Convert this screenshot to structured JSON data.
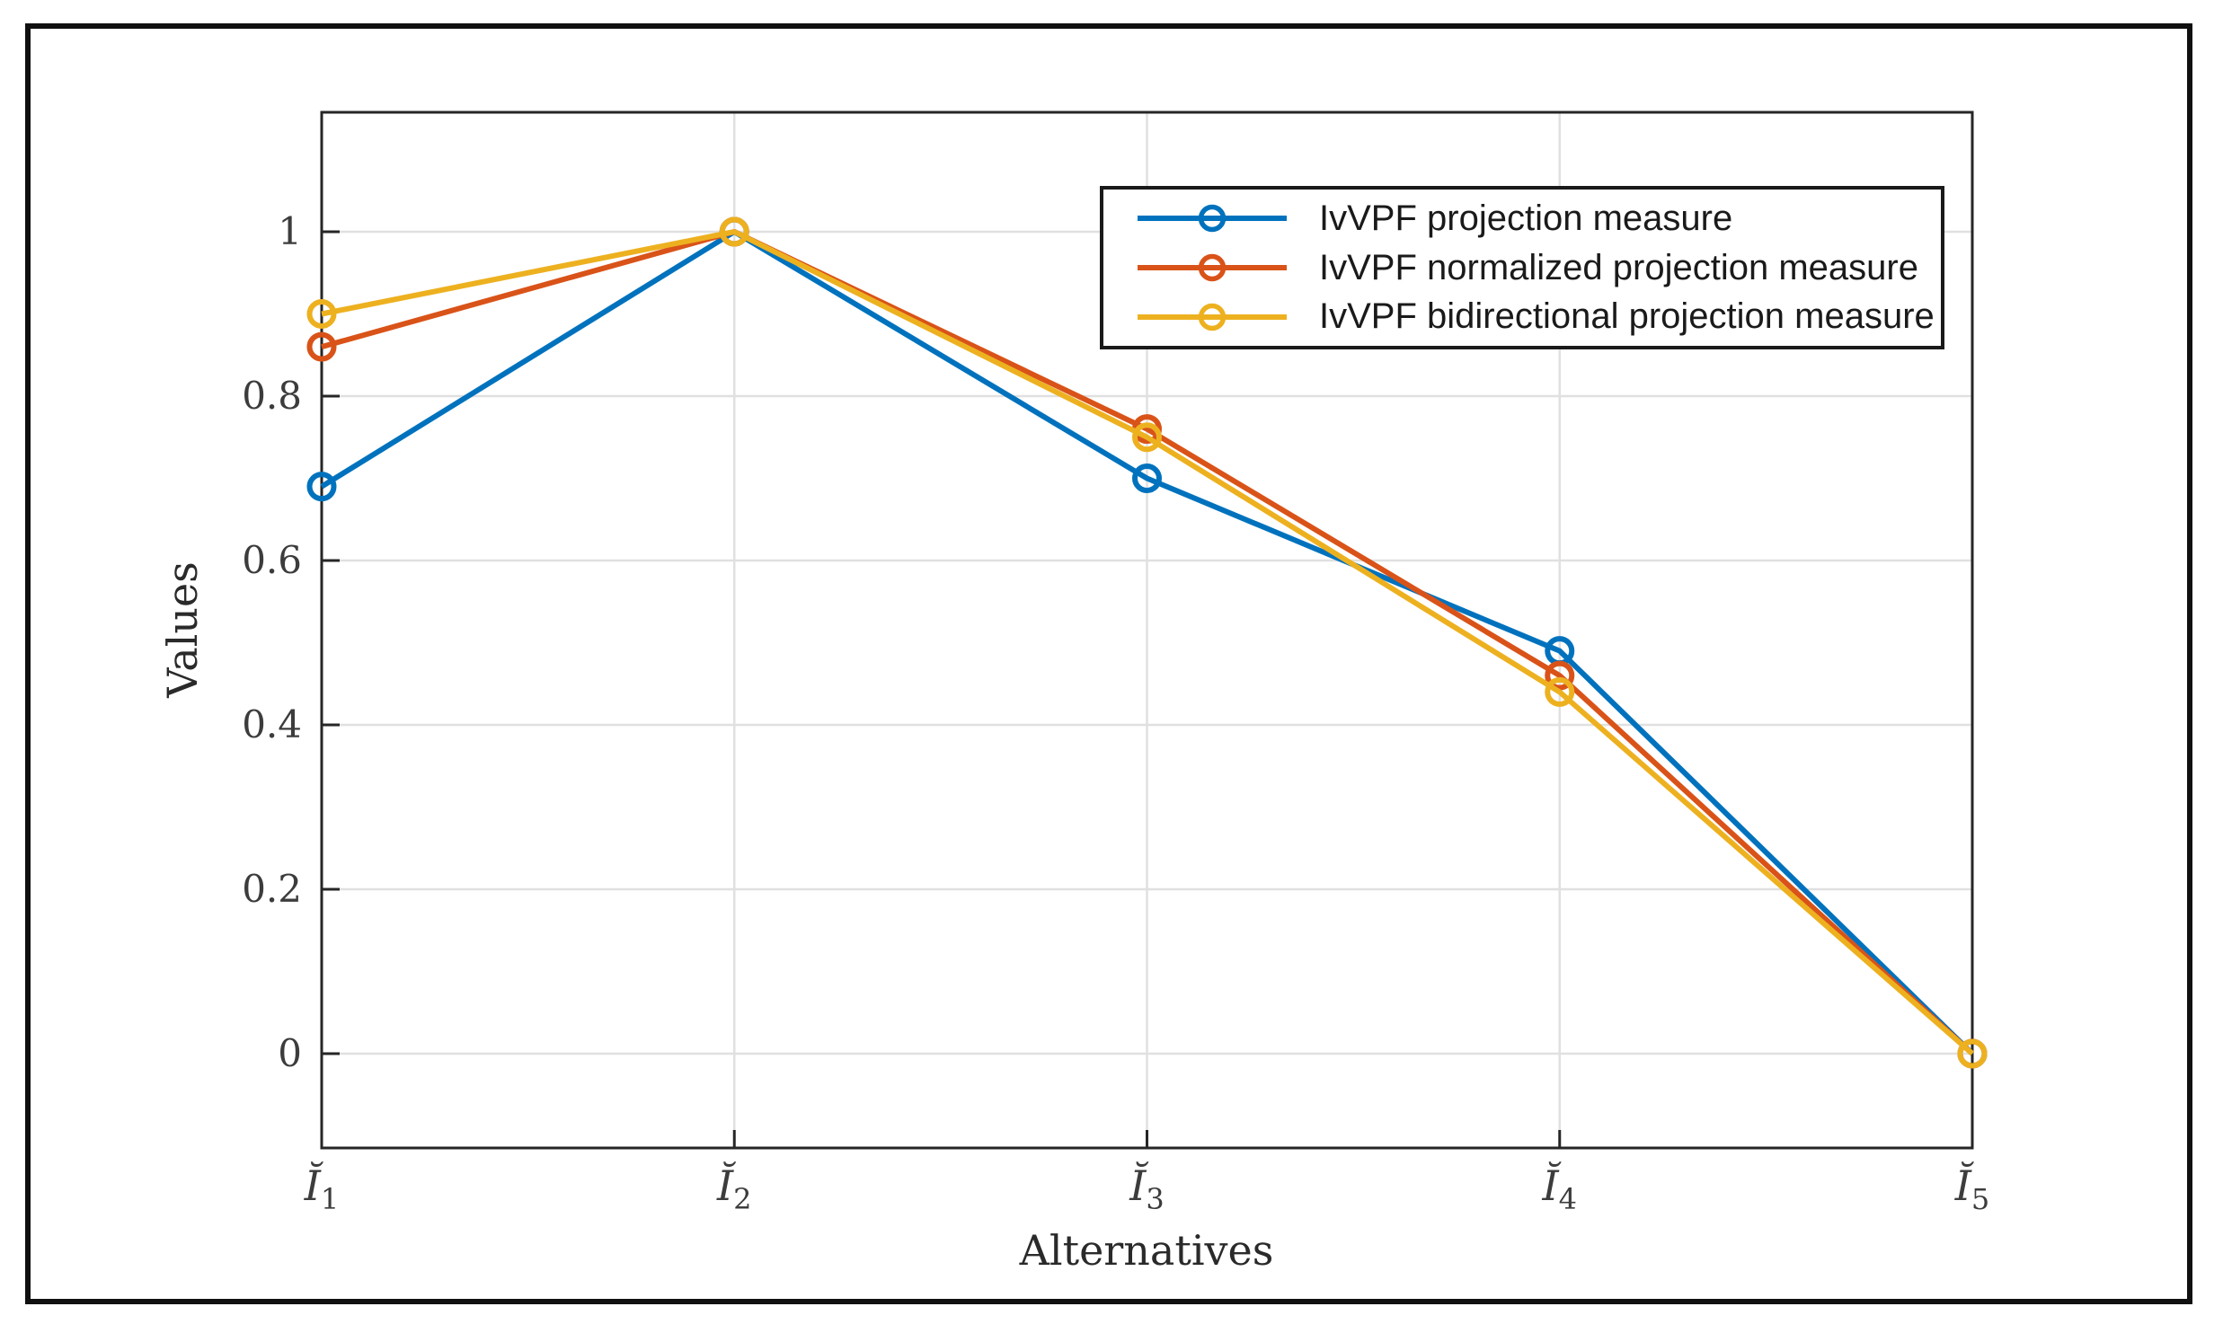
{
  "figure": {
    "background": "#ffffff",
    "outer_border_color": "#101010",
    "axis_color": "#262626",
    "grid_color": "#e0e0e0"
  },
  "chart_data": {
    "type": "line",
    "title": "",
    "xlabel": "Alternatives",
    "ylabel": "Values",
    "categories": [
      "Ĭ₁",
      "Ĭ₂",
      "Ĭ₃",
      "Ĭ₄",
      "Ĭ₅"
    ],
    "yticks": {
      "values": [
        0,
        0.2,
        0.4,
        0.6,
        0.8,
        1
      ],
      "labels": [
        "0",
        "0.2",
        "0.4",
        "0.6",
        "0.8",
        "1"
      ]
    },
    "ylim": [
      -0.12,
      1.15
    ],
    "grid": true,
    "legend_position": "upper-right-inside",
    "marker": "open-circle",
    "series": [
      {
        "name": "IvVPF projection measure",
        "color": "#0072BD",
        "values": [
          0.69,
          1.0,
          0.7,
          0.49,
          0.0
        ]
      },
      {
        "name": "IvVPF normalized projection measure",
        "color": "#D95319",
        "values": [
          0.86,
          1.0,
          0.76,
          0.46,
          0.0
        ]
      },
      {
        "name": "IvVPF bidirectional projection measure",
        "color": "#EDB120",
        "values": [
          0.9,
          1.0,
          0.75,
          0.44,
          0.0
        ]
      }
    ]
  }
}
